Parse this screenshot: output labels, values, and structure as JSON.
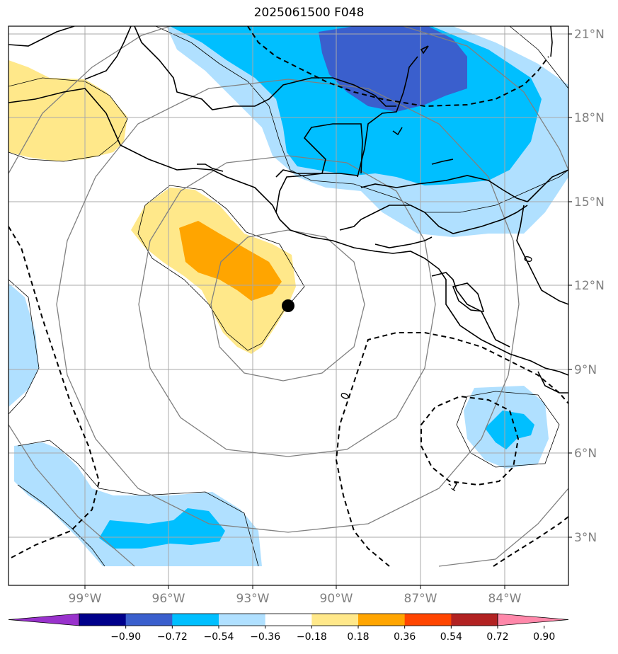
{
  "title": "2025061500 F048",
  "lat_labels": [
    "21°N",
    "18°N",
    "15°N",
    "12°N",
    "9°N",
    "6°N",
    "3°N"
  ],
  "lon_labels": [
    "99°W",
    "96°W",
    "93°W",
    "90°W",
    "87°W",
    "84°W"
  ],
  "colorbar": {
    "ticks": [
      "−0.90",
      "−0.72",
      "−0.54",
      "−0.36",
      "−0.18",
      "0.18",
      "0.36",
      "0.54",
      "0.72",
      "0.90"
    ],
    "colors": [
      "#9932cc",
      "#00008b",
      "#3a5fcd",
      "#00bfff",
      "#b0e0ff",
      "#ffffff",
      "#ffe88a",
      "#ffa500",
      "#ff4500",
      "#b22222",
      "#ff88aa"
    ]
  },
  "contour_labels": [
    "0",
    "-1",
    "0"
  ],
  "colors": {
    "light_blue": "#b0e0ff",
    "mid_blue": "#00bfff",
    "dark_blue": "#3a5fcd",
    "light_yellow": "#ffe88a",
    "orange": "#ffa500",
    "grid": "#a9a9a9",
    "range_rings": "#808080"
  },
  "storm_marker": "filled-circle"
}
